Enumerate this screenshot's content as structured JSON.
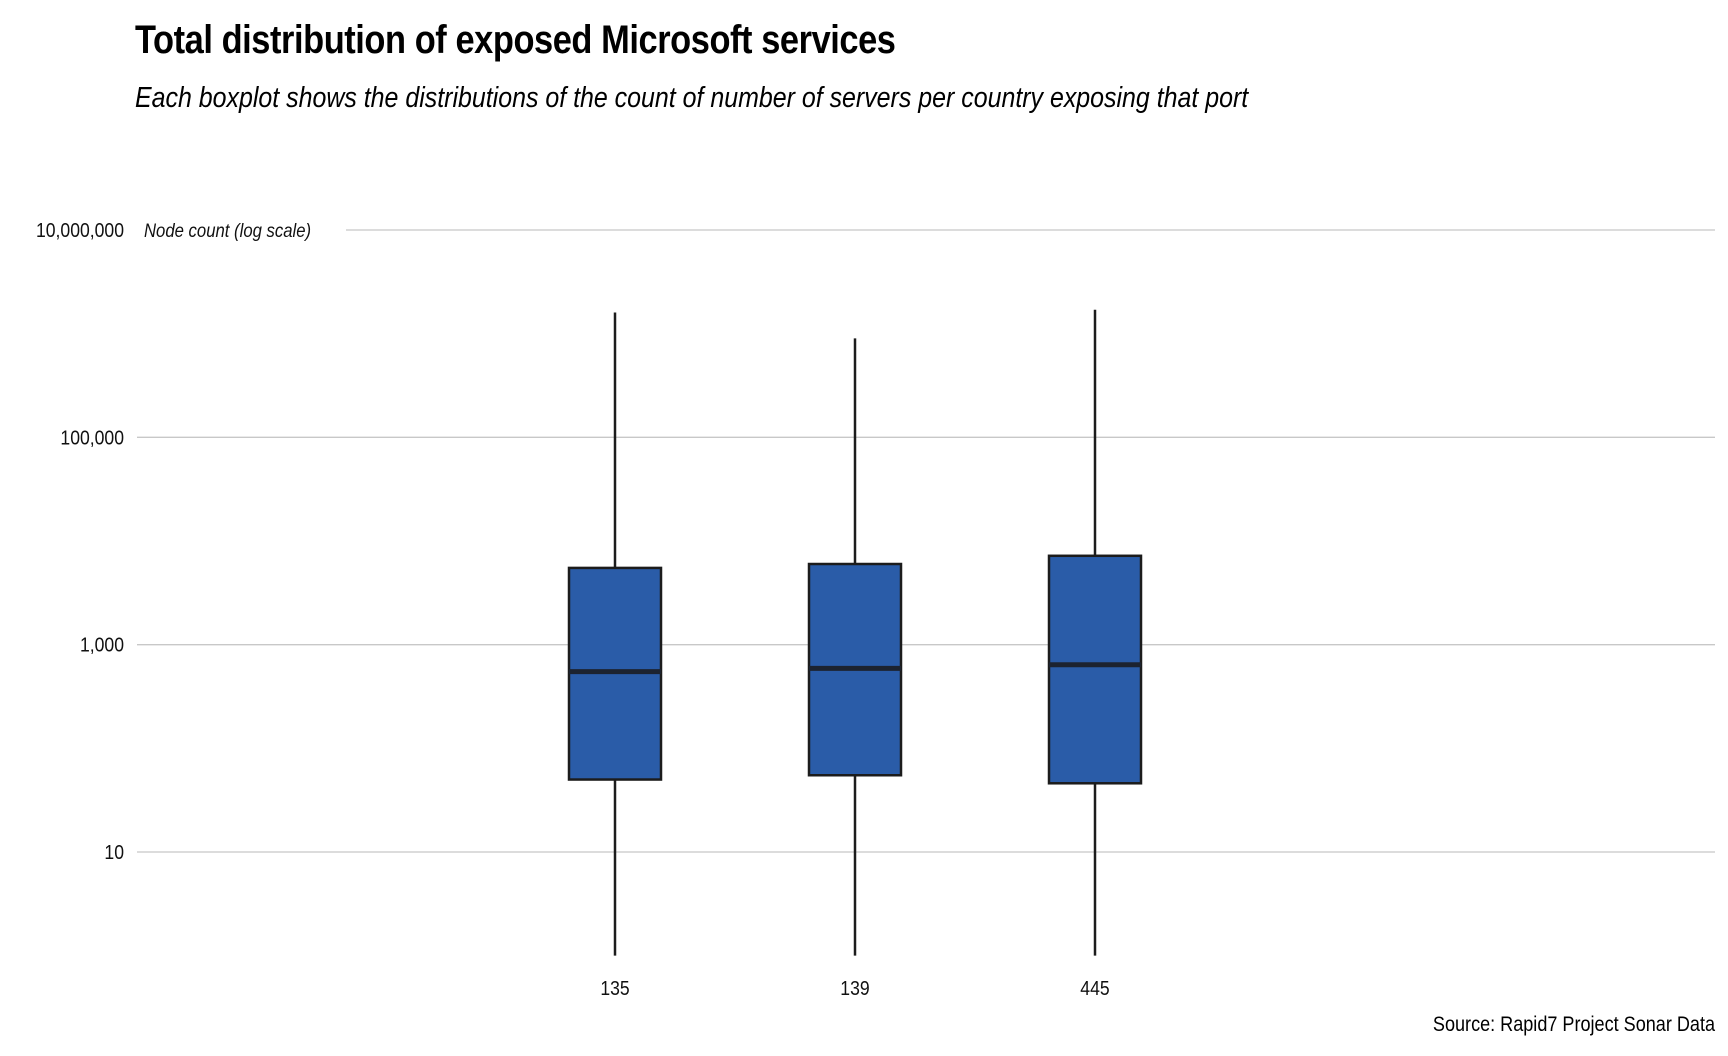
{
  "title": "Total distribution of exposed Microsoft services",
  "subtitle": "Each boxplot shows the distributions of the count of number of servers per country exposing that port",
  "caption": "Source: Rapid7 Project Sonar Data",
  "colors": {
    "box_fill": "#2a5ca8",
    "box_stroke": "#1c1c1c",
    "median": "#1c2330",
    "whisker": "#1c1c1c",
    "grid": "#c8c8c8"
  },
  "chart_data": {
    "type": "boxplot",
    "title": "Total distribution of exposed Microsoft services",
    "subtitle": "Each boxplot shows the distributions of the count of number of servers per country exposing that port",
    "xlabel": "",
    "ylabel": "Node count (log scale)",
    "yscale": "log",
    "ylim": [
      1,
      10000000
    ],
    "yticks": [
      10,
      1000,
      100000,
      10000000
    ],
    "ytick_labels": [
      "10",
      "1,000",
      "100,000",
      "10,000,000"
    ],
    "grid": true,
    "categories": [
      "135",
      "139",
      "445"
    ],
    "boxes": [
      {
        "category": "135",
        "min": 1,
        "q1": 50,
        "median": 550,
        "q3": 5500,
        "max": 1600000
      },
      {
        "category": "139",
        "min": 1,
        "q1": 55,
        "median": 590,
        "q3": 6000,
        "max": 900000
      },
      {
        "category": "445",
        "min": 1,
        "q1": 46,
        "median": 640,
        "q3": 7200,
        "max": 1700000
      }
    ]
  }
}
